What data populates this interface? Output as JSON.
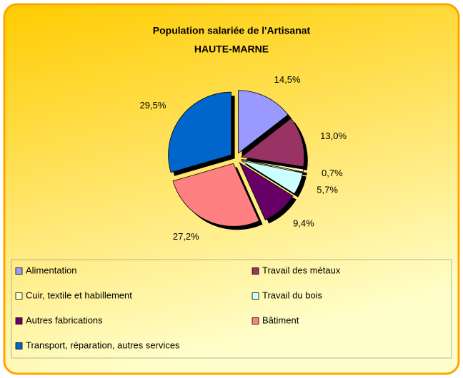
{
  "chart_data": {
    "type": "pie",
    "title": "Population salariée de l'Artisanat",
    "subtitle": "HAUTE-MARNE",
    "categories": [
      "Alimentation",
      "Travail des métaux",
      "Cuir, textile et habillement",
      "Travail du bois",
      "Autres fabrications",
      "Bâtiment",
      "Transport, réparation, autres services"
    ],
    "values": [
      14.5,
      13.0,
      0.7,
      5.7,
      9.4,
      27.2,
      29.5
    ],
    "value_labels": [
      "14,5%",
      "13,0%",
      "0,7%",
      "5,7%",
      "9,4%",
      "27,2%",
      "29,5%"
    ],
    "colors": [
      "#9999ff",
      "#993366",
      "#ffffcc",
      "#ccffff",
      "#660066",
      "#ff8080",
      "#0066cc"
    ],
    "legend": "bottom"
  }
}
